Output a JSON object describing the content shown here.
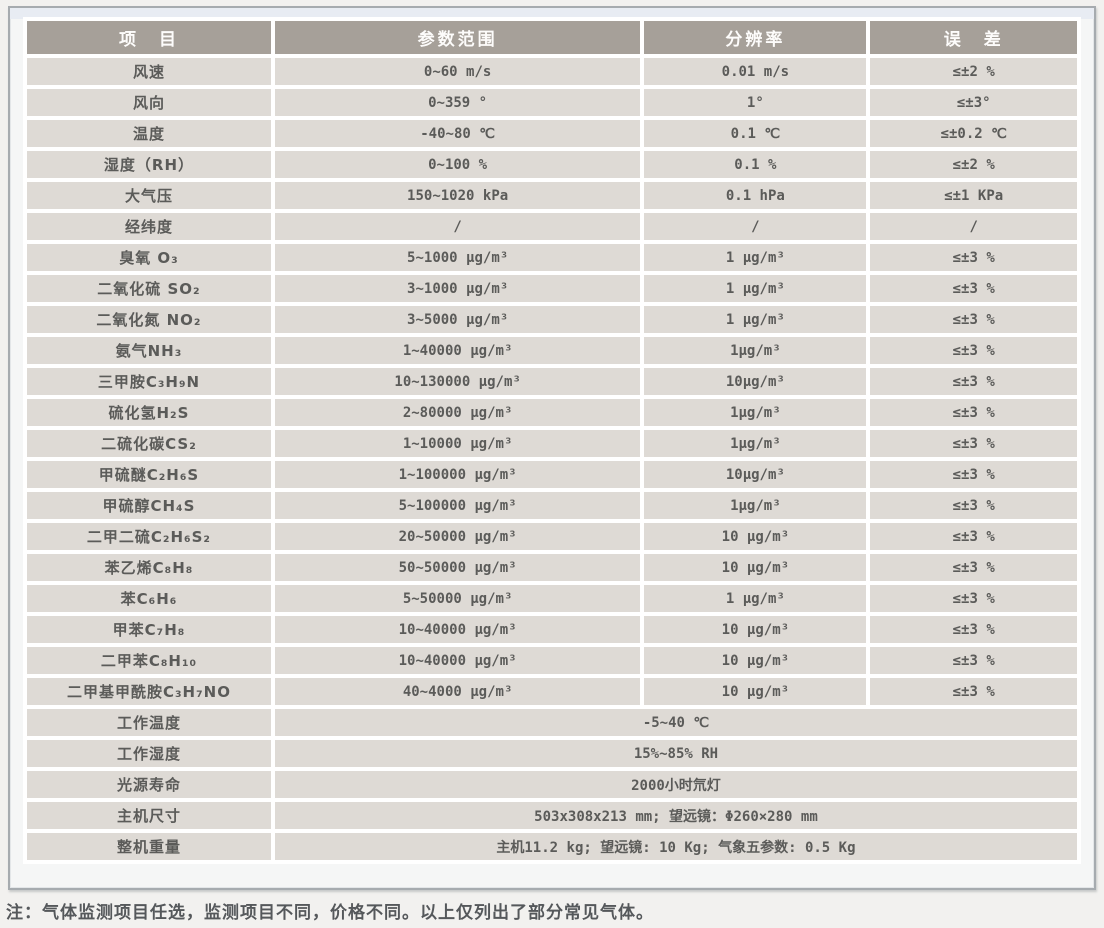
{
  "table": {
    "headers": [
      {
        "label": "项　目"
      },
      {
        "label": "参数范围"
      },
      {
        "label": "分辨率"
      },
      {
        "label": "误　差"
      }
    ],
    "rows": [
      {
        "item": "风速",
        "range": "0~60 m/s",
        "resolution": "0.01 m/s",
        "error": "≤±2 %"
      },
      {
        "item": "风向",
        "range": "0~359 °",
        "resolution": "1°",
        "error": "≤±3°"
      },
      {
        "item": "温度",
        "range": "-40~80 ℃",
        "resolution": "0.1 ℃",
        "error": "≤±0.2 ℃"
      },
      {
        "item": "湿度（RH）",
        "range": "0~100 %",
        "resolution": "0.1 %",
        "error": "≤±2 %"
      },
      {
        "item": "大气压",
        "range": "150~1020 kPa",
        "resolution": "0.1 hPa",
        "error": "≤±1 KPa"
      },
      {
        "item": "经纬度",
        "range": "/",
        "resolution": "/",
        "error": "/"
      },
      {
        "item": "臭氧 O₃",
        "range": "5~1000 μg/m³",
        "resolution": "1 μg/m³",
        "error": "≤±3 %"
      },
      {
        "item": "二氧化硫 SO₂",
        "range": "3~1000 μg/m³",
        "resolution": "1 μg/m³",
        "error": "≤±3 %"
      },
      {
        "item": "二氧化氮 NO₂",
        "range": "3~5000 μg/m³",
        "resolution": "1 μg/m³",
        "error": "≤±3 %"
      },
      {
        "item": "氨气NH₃",
        "range": "1~40000 μg/m³",
        "resolution": "1μg/m³",
        "error": "≤±3 %"
      },
      {
        "item": "三甲胺C₃H₉N",
        "range": "10~130000 μg/m³",
        "resolution": "10μg/m³",
        "error": "≤±3 %"
      },
      {
        "item": "硫化氢H₂S",
        "range": "2~80000 μg/m³",
        "resolution": "1μg/m³",
        "error": "≤±3 %"
      },
      {
        "item": "二硫化碳CS₂",
        "range": "1~10000 μg/m³",
        "resolution": "1μg/m³",
        "error": "≤±3 %"
      },
      {
        "item": "甲硫醚C₂H₆S",
        "range": "1~100000 μg/m³",
        "resolution": "10μg/m³",
        "error": "≤±3 %"
      },
      {
        "item": "甲硫醇CH₄S",
        "range": "5~100000 μg/m³",
        "resolution": "1μg/m³",
        "error": "≤±3 %"
      },
      {
        "item": "二甲二硫C₂H₆S₂",
        "range": "20~50000 μg/m³",
        "resolution": "10 μg/m³",
        "error": "≤±3 %"
      },
      {
        "item": "苯乙烯C₈H₈",
        "range": "50~50000 μg/m³",
        "resolution": "10 μg/m³",
        "error": "≤±3 %"
      },
      {
        "item": "苯C₆H₆",
        "range": "5~50000 μg/m³",
        "resolution": "1 μg/m³",
        "error": "≤±3 %"
      },
      {
        "item": "甲苯C₇H₈",
        "range": "10~40000 μg/m³",
        "resolution": "10 μg/m³",
        "error": "≤±3 %"
      },
      {
        "item": "二甲苯C₈H₁₀",
        "range": "10~40000 μg/m³",
        "resolution": "10 μg/m³",
        "error": "≤±3 %"
      },
      {
        "item": "二甲基甲酰胺C₃H₇NO",
        "range": "40~4000 μg/m³",
        "resolution": "10 μg/m³",
        "error": "≤±3 %"
      }
    ],
    "spec_rows": [
      {
        "item": "工作温度",
        "value": "-5~40 ℃"
      },
      {
        "item": "工作湿度",
        "value": "15%~85% RH"
      },
      {
        "item": "光源寿命",
        "value": "2000小时氘灯"
      },
      {
        "item": "主机尺寸",
        "value": "503x308x213 mm; 望远镜：Φ260×280 mm"
      },
      {
        "item": "整机重量",
        "value": "主机11.2 kg; 望远镜: 10 Kg; 气象五参数: 0.5 Kg"
      }
    ]
  },
  "footnote": "注：气体监测项目任选，监测项目不同，价格不同。以上仅列出了部分常见气体。",
  "colors": {
    "header_bg": "#a6a099",
    "header_text": "#fdfcfb",
    "row_bg": "#dedad5",
    "cell_text": "#5b5b59",
    "frame_border": "#a6abaf",
    "page_bg": "#f2f1ef",
    "top_band": "#e8ecf3",
    "separator": "#ffffff"
  }
}
